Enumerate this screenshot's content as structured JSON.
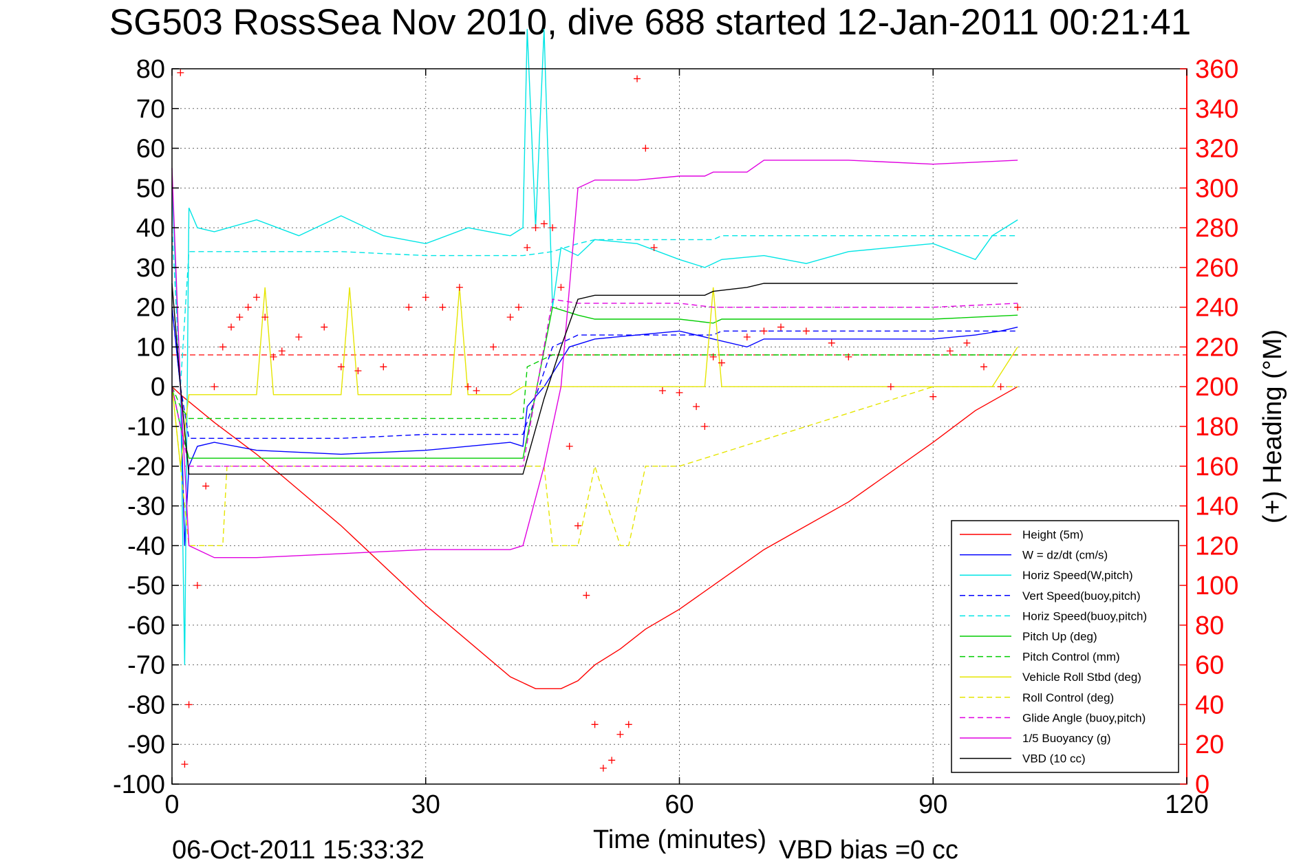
{
  "chart_data": {
    "type": "line",
    "title": "SG503 RossSea Nov 2010, dive 688 started 12-Jan-2011 00:21:41",
    "xlabel": "Time (minutes)",
    "ylabel": "",
    "y2label": "(+) Heading (°M)",
    "footer_left": "06-Oct-2011 15:33:32",
    "footer_right": "VBD bias =0 cc",
    "xlim": [
      0,
      120
    ],
    "ylim": [
      -100,
      80
    ],
    "y2lim": [
      0,
      360
    ],
    "x_ticks": [
      "0",
      "30",
      "60",
      "90",
      "120"
    ],
    "y_ticks": [
      "80",
      "70",
      "60",
      "50",
      "40",
      "30",
      "20",
      "10",
      "0",
      "-10",
      "-20",
      "-30",
      "-40",
      "-50",
      "-60",
      "-70",
      "-80",
      "-90",
      "-100"
    ],
    "y2_ticks": [
      "360",
      "340",
      "320",
      "300",
      "280",
      "260",
      "240",
      "220",
      "200",
      "180",
      "160",
      "140",
      "120",
      "100",
      "80",
      "60",
      "40",
      "20",
      "0"
    ],
    "grid": true,
    "legend_position": "bottom-right",
    "reference_line": {
      "y": 8,
      "color": "#ff0000"
    },
    "series": [
      {
        "name": "Height (5m)",
        "color": "#ff0000",
        "style": "solid",
        "x": [
          0,
          1,
          5,
          10,
          20,
          30,
          40,
          43,
          46,
          48,
          50,
          53,
          56,
          60,
          64,
          70,
          80,
          90,
          95,
          100
        ],
        "y": [
          0,
          -2,
          -9,
          -17,
          -35,
          -55,
          -73,
          -76,
          -76,
          -74,
          -70,
          -66,
          -61,
          -56,
          -50,
          -41,
          -29,
          -14,
          -6,
          0
        ]
      },
      {
        "name": "W = dz/dt (cm/s)",
        "color": "#0000ff",
        "style": "solid",
        "x": [
          0,
          1,
          1.5,
          2,
          3,
          5,
          10,
          20,
          30,
          40,
          41.5,
          42,
          44,
          47,
          50,
          55,
          60,
          64,
          68,
          70,
          80,
          90,
          95,
          98,
          100
        ],
        "y": [
          20,
          0,
          -40,
          -20,
          -15,
          -14,
          -16,
          -17,
          -16,
          -14,
          -15,
          -5,
          0,
          10,
          12,
          13,
          14,
          12,
          10,
          12,
          12,
          12,
          13,
          14,
          15
        ]
      },
      {
        "name": "Horiz Speed(W,pitch)",
        "color": "#00e5e5",
        "style": "solid",
        "x": [
          0,
          1,
          1.5,
          2,
          3,
          5,
          10,
          15,
          20,
          25,
          30,
          35,
          40,
          41.5,
          42,
          43,
          44,
          45,
          46,
          48,
          50,
          55,
          60,
          63,
          65,
          70,
          75,
          80,
          90,
          95,
          97,
          100
        ],
        "y": [
          50,
          0,
          -70,
          45,
          40,
          39,
          42,
          38,
          43,
          38,
          36,
          40,
          38,
          40,
          90,
          40,
          90,
          20,
          35,
          33,
          37,
          36,
          32,
          30,
          32,
          33,
          31,
          34,
          36,
          32,
          38,
          42
        ]
      },
      {
        "name": "Vert Speed(buoy,pitch)",
        "color": "#0000ff",
        "style": "dashed",
        "x": [
          0,
          1,
          2,
          5,
          10,
          20,
          30,
          40,
          41.5,
          45,
          48,
          50,
          60,
          64,
          65,
          90,
          100
        ],
        "y": [
          20,
          0,
          -13,
          -13,
          -13,
          -13,
          -12,
          -12,
          -12,
          10,
          13,
          13,
          13,
          13,
          14,
          14,
          14
        ]
      },
      {
        "name": "Horiz Speed(buoy,pitch)",
        "color": "#00e5e5",
        "style": "dashed",
        "x": [
          0,
          1,
          2,
          5,
          10,
          20,
          30,
          40,
          41.5,
          45,
          48,
          50,
          60,
          64,
          65,
          90,
          100
        ],
        "y": [
          40,
          0,
          34,
          34,
          34,
          34,
          33,
          33,
          33,
          34,
          36,
          37,
          37,
          37,
          38,
          38,
          38
        ]
      },
      {
        "name": "Pitch Up (deg)",
        "color": "#00cc00",
        "style": "solid",
        "x": [
          0,
          1,
          2,
          5,
          10,
          20,
          30,
          40,
          41.5,
          45,
          48,
          50,
          60,
          64,
          65,
          90,
          100
        ],
        "y": [
          0,
          -10,
          -18,
          -18,
          -18,
          -18,
          -18,
          -18,
          -18,
          20,
          18,
          17,
          17,
          16,
          17,
          17,
          18
        ]
      },
      {
        "name": "Pitch Control (mm)",
        "color": "#00cc00",
        "style": "dashed",
        "x": [
          0,
          1,
          2,
          41.5,
          42,
          45,
          100
        ],
        "y": [
          0,
          -5,
          -8,
          -8,
          5,
          8,
          8
        ]
      },
      {
        "name": "Vehicle Roll Stbd (deg)",
        "color": "#e5e500",
        "style": "solid",
        "x": [
          0,
          1,
          2,
          5,
          10,
          11,
          12,
          20,
          21,
          22,
          33,
          34,
          35,
          40,
          41.5,
          44,
          45,
          48,
          50,
          53,
          56,
          57,
          60,
          62,
          63,
          64,
          65,
          90,
          95,
          97,
          100
        ],
        "y": [
          0,
          -20,
          -2,
          -2,
          -2,
          25,
          -2,
          -2,
          25,
          -2,
          -2,
          25,
          -2,
          -2,
          0,
          0,
          0,
          0,
          0,
          0,
          0,
          0,
          0,
          0,
          0,
          25,
          0,
          0,
          0,
          0,
          10
        ]
      },
      {
        "name": "Roll Control (deg)",
        "color": "#e5e500",
        "style": "dashed",
        "x": [
          0,
          1,
          2,
          6,
          6.5,
          41.5,
          44,
          45,
          48,
          50,
          53,
          54,
          56,
          57,
          60,
          90,
          100
        ],
        "y": [
          0,
          -20,
          -40,
          -40,
          -20,
          -20,
          -20,
          -40,
          -40,
          -20,
          -40,
          -40,
          -20,
          -20,
          -20,
          0,
          0
        ]
      },
      {
        "name": "Glide Angle (buoy,pitch)",
        "color": "#e000e0",
        "style": "dashed",
        "x": [
          0,
          1,
          2,
          5,
          10,
          20,
          30,
          40,
          41.5,
          45,
          48,
          50,
          60,
          64,
          65,
          90,
          100
        ],
        "y": [
          0,
          -10,
          -20,
          -20,
          -20,
          -20,
          -20,
          -20,
          -20,
          22,
          21,
          21,
          21,
          20,
          20,
          20,
          21
        ]
      },
      {
        "name": "1/5 Buoyancy (g)",
        "color": "#e000e0",
        "style": "solid",
        "x": [
          0,
          1,
          2,
          5,
          10,
          20,
          30,
          40,
          41.5,
          44,
          46,
          48,
          50,
          55,
          60,
          63,
          64,
          68,
          70,
          80,
          90,
          100
        ],
        "y": [
          55,
          0,
          -40,
          -43,
          -43,
          -42,
          -41,
          -41,
          -40,
          -20,
          0,
          50,
          52,
          52,
          53,
          53,
          54,
          54,
          57,
          57,
          56,
          57
        ]
      },
      {
        "name": "VBD (10 cc)",
        "color": "#000000",
        "style": "solid",
        "x": [
          0,
          1,
          2,
          5,
          10,
          20,
          30,
          40,
          41.5,
          44,
          46,
          48,
          50,
          55,
          60,
          63,
          64,
          68,
          70,
          80,
          90,
          100
        ],
        "y": [
          26,
          0,
          -22,
          -22,
          -22,
          -22,
          -22,
          -22,
          -22,
          -3,
          10,
          22,
          23,
          23,
          23,
          23,
          24,
          25,
          26,
          26,
          26,
          26
        ]
      }
    ],
    "heading": {
      "name": "(+) Heading (°M)",
      "color": "#ff0000",
      "marker": "+",
      "x": [
        1,
        1.5,
        2,
        3,
        4,
        5,
        6,
        7,
        8,
        9,
        10,
        11,
        12,
        13,
        15,
        18,
        20,
        22,
        25,
        28,
        30,
        32,
        34,
        35,
        36,
        38,
        40,
        41,
        42,
        43,
        44,
        45,
        46,
        47,
        48,
        49,
        50,
        51,
        52,
        53,
        54,
        55,
        56,
        57,
        58,
        60,
        62,
        63,
        64,
        65,
        68,
        70,
        72,
        75,
        78,
        80,
        85,
        90,
        92,
        94,
        96,
        98,
        100
      ],
      "y": [
        358,
        10,
        40,
        100,
        150,
        200,
        220,
        230,
        235,
        240,
        245,
        235,
        215,
        218,
        225,
        230,
        210,
        208,
        210,
        240,
        245,
        240,
        250,
        200,
        198,
        220,
        235,
        240,
        270,
        280,
        282,
        280,
        250,
        170,
        130,
        95,
        30,
        8,
        12,
        25,
        30,
        355,
        320,
        270,
        198,
        197,
        190,
        180,
        215,
        212,
        225,
        228,
        230,
        228,
        222,
        215,
        200,
        195,
        218,
        222,
        210,
        200,
        240
      ]
    }
  }
}
